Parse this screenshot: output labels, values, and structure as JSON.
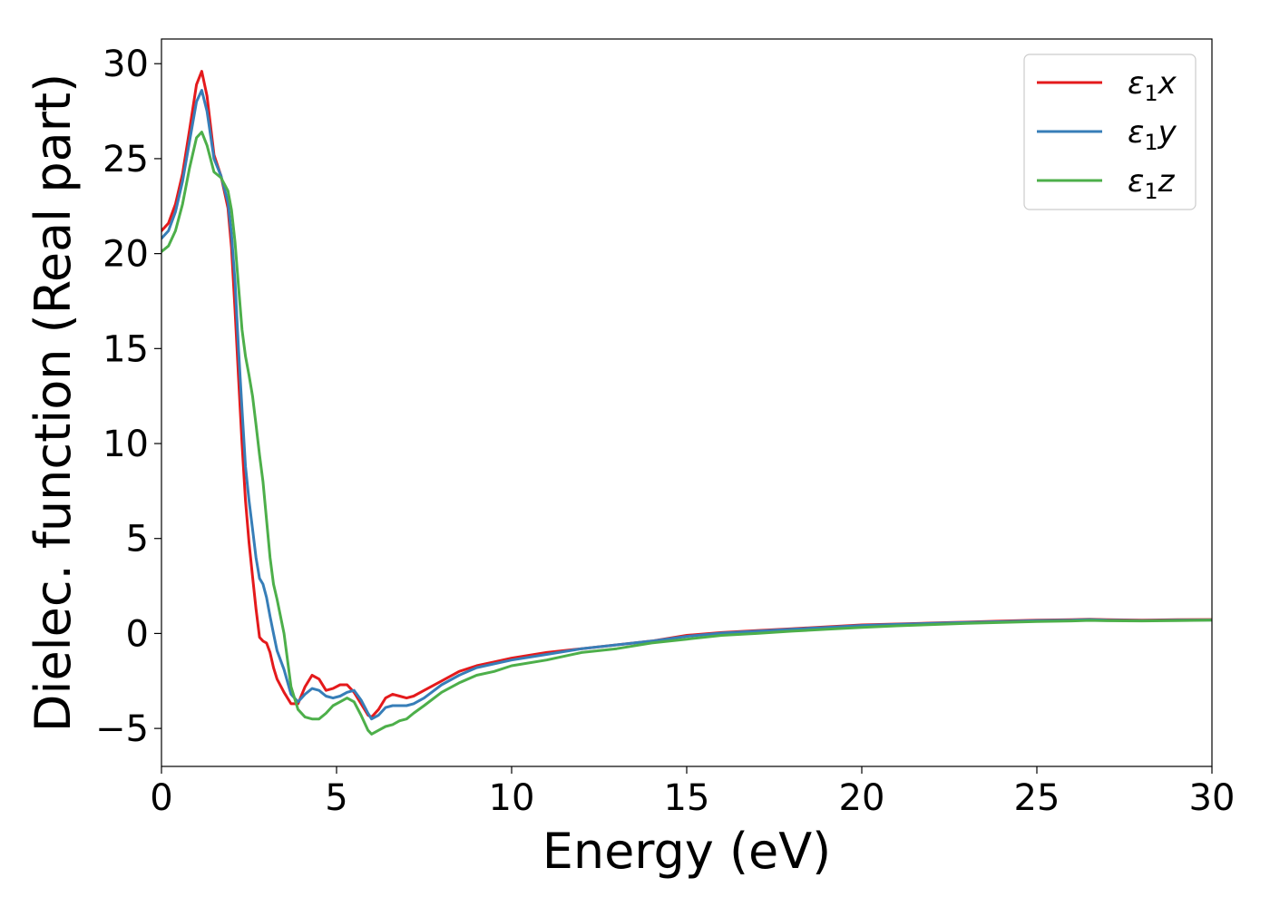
{
  "chart_data": {
    "type": "line",
    "title": "",
    "xlabel": "Energy (eV)",
    "ylabel": "Dielec. function (Real part)",
    "xlim": [
      0,
      30
    ],
    "ylim": [
      -7,
      31.3
    ],
    "xticks": [
      0,
      5,
      10,
      15,
      20,
      25,
      30
    ],
    "xtick_labels": [
      "0",
      "5",
      "10",
      "15",
      "20",
      "25",
      "30"
    ],
    "yticks": [
      -5,
      0,
      5,
      10,
      15,
      20,
      25,
      30
    ],
    "ytick_labels": [
      "−5",
      "0",
      "5",
      "10",
      "15",
      "20",
      "25",
      "30"
    ],
    "grid": false,
    "legend": {
      "position": "top-right",
      "entries": [
        {
          "symbol": "ε",
          "sub": "1",
          "suffix": "x"
        },
        {
          "symbol": "ε",
          "sub": "1",
          "suffix": "y"
        },
        {
          "symbol": "ε",
          "sub": "1",
          "suffix": "z"
        }
      ]
    },
    "series": [
      {
        "color": "#e41a1c",
        "x": [
          0,
          0.2,
          0.4,
          0.6,
          0.8,
          1.0,
          1.15,
          1.3,
          1.5,
          1.7,
          1.9,
          2.0,
          2.1,
          2.2,
          2.3,
          2.4,
          2.5,
          2.6,
          2.7,
          2.8,
          2.9,
          3.0,
          3.1,
          3.2,
          3.3,
          3.5,
          3.7,
          3.9,
          4.1,
          4.3,
          4.5,
          4.7,
          4.9,
          5.1,
          5.3,
          5.5,
          5.7,
          5.9,
          6.0,
          6.2,
          6.4,
          6.6,
          6.8,
          7.0,
          7.2,
          7.5,
          8.0,
          8.5,
          9.0,
          9.5,
          10.0,
          11.0,
          12.0,
          13.0,
          14.0,
          15.0,
          16.0,
          17.0,
          18.0,
          19.0,
          20.0,
          21.0,
          22.0,
          23.0,
          24.0,
          25.0,
          26.0,
          26.5,
          27.0,
          28.0,
          29.0,
          30.0
        ],
        "y": [
          21.2,
          21.6,
          22.6,
          24.2,
          26.5,
          28.9,
          29.6,
          28.3,
          25.2,
          24.1,
          22.4,
          20.3,
          17.0,
          13.5,
          10.0,
          7.0,
          4.8,
          3.0,
          1.3,
          -0.2,
          -0.4,
          -0.5,
          -1.0,
          -1.8,
          -2.4,
          -3.1,
          -3.7,
          -3.7,
          -2.8,
          -2.2,
          -2.4,
          -3.0,
          -2.9,
          -2.7,
          -2.7,
          -3.1,
          -3.7,
          -4.3,
          -4.4,
          -4.0,
          -3.4,
          -3.2,
          -3.3,
          -3.4,
          -3.3,
          -3.0,
          -2.5,
          -2.0,
          -1.7,
          -1.5,
          -1.3,
          -1.0,
          -0.8,
          -0.6,
          -0.4,
          -0.1,
          0.05,
          0.15,
          0.25,
          0.35,
          0.45,
          0.5,
          0.55,
          0.6,
          0.65,
          0.7,
          0.72,
          0.75,
          0.72,
          0.7,
          0.72,
          0.73
        ]
      },
      {
        "color": "#377eb8",
        "x": [
          0,
          0.2,
          0.4,
          0.6,
          0.8,
          1.0,
          1.15,
          1.3,
          1.5,
          1.7,
          1.9,
          2.0,
          2.1,
          2.2,
          2.3,
          2.4,
          2.5,
          2.6,
          2.7,
          2.8,
          2.9,
          3.0,
          3.1,
          3.2,
          3.3,
          3.5,
          3.7,
          3.9,
          4.1,
          4.3,
          4.5,
          4.7,
          4.9,
          5.1,
          5.3,
          5.5,
          5.7,
          5.9,
          6.0,
          6.2,
          6.4,
          6.6,
          6.8,
          7.0,
          7.2,
          7.5,
          8.0,
          8.5,
          9.0,
          9.5,
          10.0,
          11.0,
          12.0,
          13.0,
          14.0,
          15.0,
          16.0,
          17.0,
          18.0,
          19.0,
          20.0,
          21.0,
          22.0,
          23.0,
          24.0,
          25.0,
          26.0,
          26.5,
          27.0,
          28.0,
          29.0,
          30.0
        ],
        "y": [
          20.8,
          21.2,
          22.2,
          23.8,
          25.9,
          28.0,
          28.6,
          27.5,
          25.0,
          24.1,
          22.7,
          21.0,
          18.5,
          15.0,
          11.8,
          8.8,
          7.0,
          5.5,
          4.0,
          2.9,
          2.6,
          1.9,
          0.9,
          0.0,
          -0.9,
          -1.9,
          -3.2,
          -3.6,
          -3.2,
          -2.9,
          -3.0,
          -3.3,
          -3.4,
          -3.3,
          -3.1,
          -3.0,
          -3.5,
          -4.2,
          -4.5,
          -4.3,
          -3.9,
          -3.8,
          -3.8,
          -3.8,
          -3.7,
          -3.4,
          -2.7,
          -2.2,
          -1.8,
          -1.6,
          -1.4,
          -1.1,
          -0.8,
          -0.6,
          -0.4,
          -0.15,
          0.02,
          0.12,
          0.22,
          0.32,
          0.42,
          0.48,
          0.53,
          0.58,
          0.62,
          0.68,
          0.7,
          0.73,
          0.7,
          0.68,
          0.7,
          0.71
        ]
      },
      {
        "color": "#4daf4a",
        "x": [
          0,
          0.2,
          0.4,
          0.6,
          0.8,
          1.0,
          1.15,
          1.3,
          1.5,
          1.7,
          1.9,
          2.0,
          2.1,
          2.2,
          2.3,
          2.4,
          2.5,
          2.6,
          2.7,
          2.8,
          2.9,
          3.0,
          3.1,
          3.2,
          3.3,
          3.5,
          3.7,
          3.9,
          4.1,
          4.3,
          4.5,
          4.7,
          4.9,
          5.1,
          5.3,
          5.5,
          5.7,
          5.9,
          6.0,
          6.2,
          6.4,
          6.6,
          6.8,
          7.0,
          7.2,
          7.5,
          8.0,
          8.5,
          9.0,
          9.5,
          10.0,
          11.0,
          12.0,
          13.0,
          14.0,
          15.0,
          16.0,
          17.0,
          18.0,
          19.0,
          20.0,
          21.0,
          22.0,
          23.0,
          24.0,
          25.0,
          26.0,
          26.5,
          27.0,
          28.0,
          29.0,
          30.0
        ],
        "y": [
          20.1,
          20.4,
          21.2,
          22.6,
          24.5,
          26.1,
          26.4,
          25.7,
          24.3,
          24.0,
          23.3,
          22.3,
          20.6,
          18.3,
          16.0,
          14.6,
          13.6,
          12.5,
          11.0,
          9.4,
          8.0,
          6.0,
          4.0,
          2.6,
          1.8,
          0.0,
          -2.8,
          -4.0,
          -4.4,
          -4.5,
          -4.5,
          -4.2,
          -3.8,
          -3.6,
          -3.4,
          -3.6,
          -4.3,
          -5.1,
          -5.3,
          -5.1,
          -4.9,
          -4.8,
          -4.6,
          -4.5,
          -4.2,
          -3.8,
          -3.1,
          -2.6,
          -2.2,
          -2.0,
          -1.7,
          -1.4,
          -1.0,
          -0.8,
          -0.5,
          -0.3,
          -0.1,
          0.0,
          0.12,
          0.22,
          0.32,
          0.4,
          0.47,
          0.53,
          0.58,
          0.63,
          0.66,
          0.69,
          0.67,
          0.66,
          0.68,
          0.7
        ]
      }
    ]
  }
}
